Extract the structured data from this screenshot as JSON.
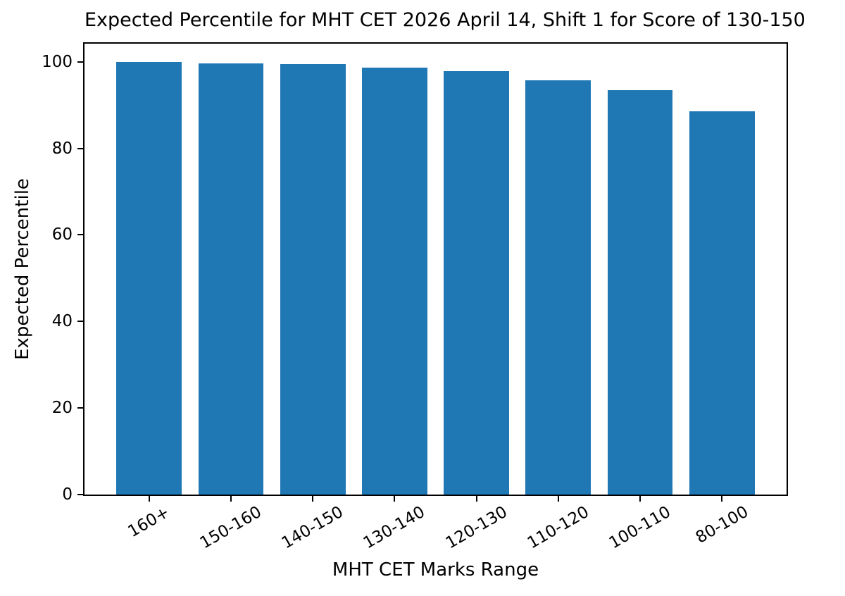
{
  "figure": {
    "background_color": "#ffffff"
  },
  "chart_data": {
    "type": "bar",
    "title": "Expected Percentile for MHT CET 2026 April 14, Shift 1 for Score of 130-150",
    "xlabel": "MHT CET Marks Range",
    "ylabel": "Expected Percentile",
    "categories": [
      "160+",
      "150-160",
      "140-150",
      "130-140",
      "120-130",
      "110-120",
      "100-110",
      "80-100"
    ],
    "values": [
      100,
      99.7,
      99.4,
      98.7,
      97.9,
      95.8,
      93.5,
      88.5
    ],
    "yticks": [
      0,
      20,
      40,
      60,
      80,
      100
    ],
    "ylim": [
      0,
      104.2
    ],
    "bar_color": "#1f77b4",
    "bar_width_fraction": 0.8,
    "x_tick_rotation_deg": 30,
    "grid": false,
    "legend": null,
    "axis_color": "#000000",
    "text_color": "#000000"
  }
}
